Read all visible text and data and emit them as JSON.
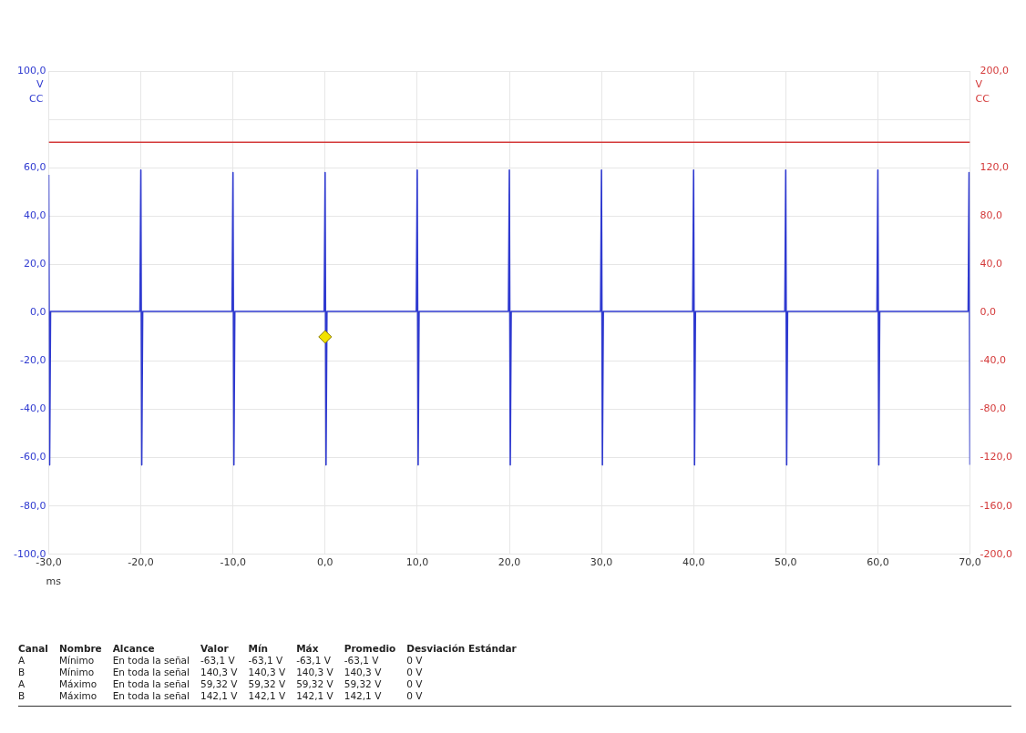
{
  "chart_data": {
    "type": "line",
    "xlabel": "ms",
    "ylabel": "V CC",
    "y2label": "V CC",
    "xlim": [
      -30,
      70
    ],
    "xticks": [
      {
        "value": -30,
        "label": "-30,0"
      },
      {
        "value": -20,
        "label": "-20,0"
      },
      {
        "value": -10,
        "label": "-10,0"
      },
      {
        "value": 0,
        "label": "0,0"
      },
      {
        "value": 10,
        "label": "10,0"
      },
      {
        "value": 20,
        "label": "20,0"
      },
      {
        "value": 30,
        "label": "30,0"
      },
      {
        "value": 40,
        "label": "40,0"
      },
      {
        "value": 50,
        "label": "50,0"
      },
      {
        "value": 60,
        "label": "60,0"
      },
      {
        "value": 70,
        "label": "70,0"
      }
    ],
    "ylim": [
      -100,
      100
    ],
    "yticks": [
      {
        "value": -100,
        "label": "-100,0"
      },
      {
        "value": -80,
        "label": "-80,0"
      },
      {
        "value": -60,
        "label": "-60,0"
      },
      {
        "value": -40,
        "label": "-40,0"
      },
      {
        "value": -20,
        "label": "-20,0"
      },
      {
        "value": 0,
        "label": "0,0"
      },
      {
        "value": 20,
        "label": "20,0"
      },
      {
        "value": 40,
        "label": "40,0"
      },
      {
        "value": 60,
        "label": "60,0"
      },
      {
        "value": 80,
        "label": null
      },
      {
        "value": 100,
        "label": "100,0"
      }
    ],
    "y2lim": [
      -200,
      200
    ],
    "y2ticks": [
      {
        "value": -200,
        "label": "-200,0"
      },
      {
        "value": -160,
        "label": "-160,0"
      },
      {
        "value": -120,
        "label": "-120,0"
      },
      {
        "value": -80,
        "label": "-80,0"
      },
      {
        "value": -40,
        "label": "-40,0"
      },
      {
        "value": 0,
        "label": "0,0"
      },
      {
        "value": 40,
        "label": "40,0"
      },
      {
        "value": 80,
        "label": "80,0"
      },
      {
        "value": 120,
        "label": "120,0"
      },
      {
        "value": 160,
        "label": null
      },
      {
        "value": 200,
        "label": "200,0"
      }
    ],
    "grid": true,
    "legend": false,
    "marker": "none",
    "line_style": "solid",
    "series": [
      {
        "color": "#2f3ad0",
        "x": [
          -30,
          -29.9,
          -29.8,
          -20.1,
          -20,
          -19.9,
          -19.8,
          -10.1,
          -10,
          -9.9,
          -9.8,
          -0.1,
          0,
          0.1,
          0.2,
          9.9,
          10,
          10.1,
          10.2,
          19.9,
          20,
          20.1,
          20.2,
          29.9,
          30,
          30.1,
          30.2,
          39.9,
          40,
          40.1,
          40.2,
          49.9,
          50,
          50.1,
          50.2,
          59.9,
          60,
          60.1,
          60.2,
          69.8,
          69.9,
          70
        ],
        "values": [
          57,
          -63,
          0.5,
          0.5,
          59,
          -63,
          0.5,
          0.5,
          58,
          -63,
          0.5,
          0.5,
          58,
          -63,
          0.5,
          0.5,
          59,
          -63,
          0.5,
          0.5,
          59,
          -63,
          0.5,
          0.5,
          59,
          -63,
          0.5,
          0.5,
          59,
          -63,
          0.5,
          0.5,
          59,
          -63,
          0.5,
          0.5,
          59,
          -63,
          0.5,
          0.5,
          58,
          -63
        ]
      },
      {
        "color": "#d43a3a",
        "axis": "y2",
        "x": [
          -30,
          70
        ],
        "values": [
          141,
          141
        ]
      },
      {
        "type": "scatter",
        "color": "#f2e200",
        "marker": "diamond",
        "x": [
          0
        ],
        "values": [
          -10
        ]
      }
    ],
    "annotations": [
      "Canal\tNombre\tAlcance\tValor\tMín\tMáx\tPromedio\tDesviación Estándar",
      "A\tMínimo\tEn toda la señal\t-63,1 V\t-63,1 V\t-63,1 V\t-63,1 V\t0 V",
      "B\tMínimo\tEn toda la señal\t140,3 V\t140,3 V\t140,3 V\t140,3 V\t0 V",
      "A\tMáximo\tEn toda la señal\t59,32 V\t59,32 V\t59,32 V\t59,32 V\t0 V",
      "B\tMáximo\tEn toda la señal\t142,1 V\t142,1 V\t142,1 V\t142,1 V\t0 V"
    ]
  }
}
